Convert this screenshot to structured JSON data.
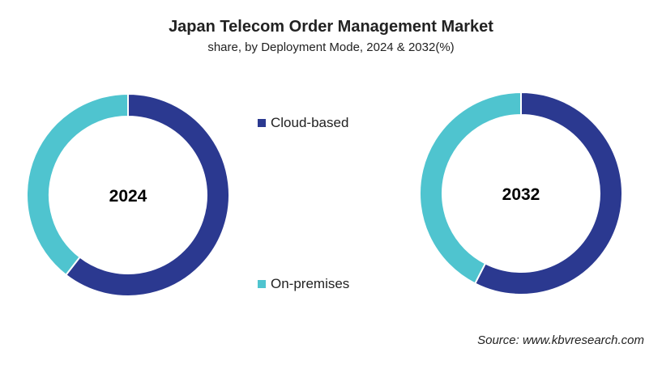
{
  "chart_data": {
    "type": "pie",
    "title": "Japan Telecom Order Management Market",
    "subtitle": "share, by Deployment Mode, 2024 & 2032(%)",
    "legend": [
      "Cloud-based",
      "On-premises"
    ],
    "colors": {
      "Cloud-based": "#2b3990",
      "On-premises": "#4fc4cf"
    },
    "charts": [
      {
        "label": "2024",
        "values": [
          {
            "name": "Cloud-based",
            "value": 60.5
          },
          {
            "name": "On-premises",
            "value": 39.5
          }
        ]
      },
      {
        "label": "2032",
        "values": [
          {
            "name": "Cloud-based",
            "value": 57.5
          },
          {
            "name": "On-premises",
            "value": 42.5
          }
        ]
      }
    ],
    "source": "Source: www.kbvresearch.com"
  }
}
